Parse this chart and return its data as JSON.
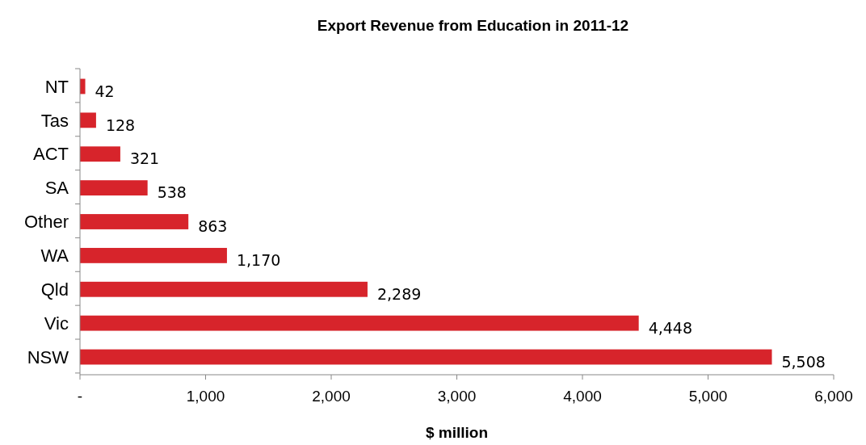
{
  "chart_data": {
    "type": "bar",
    "orientation": "horizontal",
    "title": "Export Revenue from Education in 2011-12",
    "xlabel": "$ million",
    "categories": [
      "NT",
      "Tas",
      "ACT",
      "SA",
      "Other",
      "WA",
      "Qld",
      "Vic",
      "NSW"
    ],
    "values": [
      42,
      128,
      321,
      538,
      863,
      1170,
      2289,
      4448,
      5508
    ],
    "value_labels": [
      "42",
      "128",
      "321",
      "538",
      "863",
      "1,170",
      "2,289",
      "4,448",
      "5,508"
    ],
    "color": "#d7242b",
    "xlim": [
      0,
      6000
    ],
    "xticks": [
      {
        "value": 0,
        "label": "-"
      },
      {
        "value": 1000,
        "label": "1,000"
      },
      {
        "value": 2000,
        "label": "2,000"
      },
      {
        "value": 3000,
        "label": "3,000"
      },
      {
        "value": 4000,
        "label": "4,000"
      },
      {
        "value": 5000,
        "label": "5,000"
      },
      {
        "value": 6000,
        "label": "6,000"
      }
    ],
    "grid": false
  }
}
